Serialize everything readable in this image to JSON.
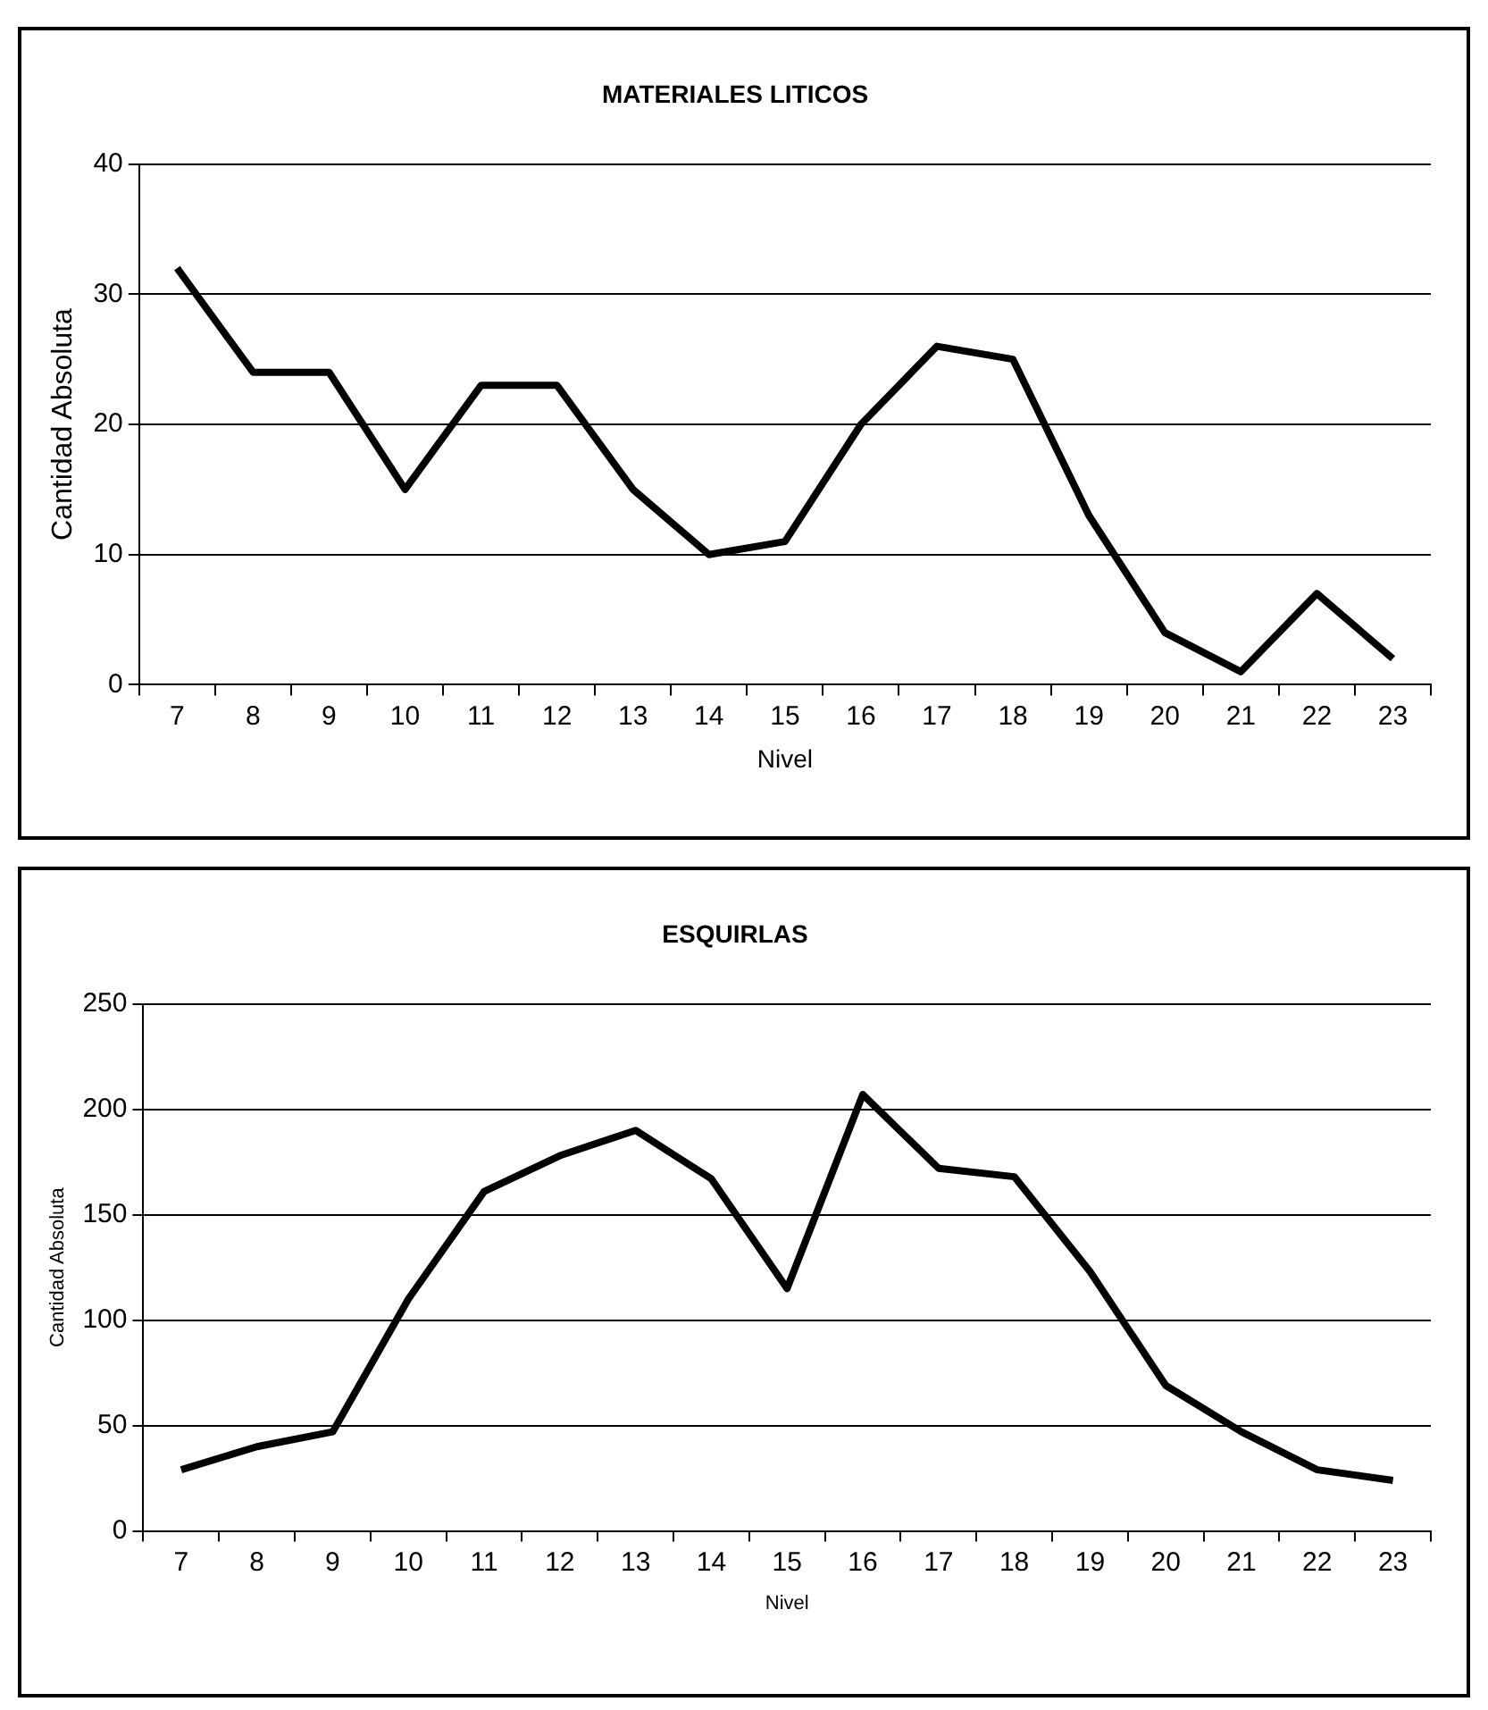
{
  "chart_data": [
    {
      "type": "line",
      "title": "MATERIALES LITICOS",
      "xlabel": "Nivel",
      "ylabel": "Cantidad Absoluta",
      "categories": [
        "7",
        "8",
        "9",
        "10",
        "11",
        "12",
        "13",
        "14",
        "15",
        "16",
        "17",
        "18",
        "19",
        "20",
        "21",
        "22",
        "23"
      ],
      "series": [
        {
          "color": "#000000",
          "values": [
            32,
            24,
            24,
            15,
            23,
            23,
            15,
            10,
            11,
            20,
            26,
            25,
            13,
            4,
            1,
            7,
            2
          ]
        }
      ],
      "ylim": [
        0,
        40
      ],
      "yticks": [
        0,
        10,
        20,
        30,
        40
      ],
      "grid": "y",
      "legend": false,
      "marker": "none",
      "line_style": "solid"
    },
    {
      "type": "line",
      "title": "ESQUIRLAS",
      "xlabel": "Nivel",
      "ylabel": "Cantidad Absoluta",
      "categories": [
        "7",
        "8",
        "9",
        "10",
        "11",
        "12",
        "13",
        "14",
        "15",
        "16",
        "17",
        "18",
        "19",
        "20",
        "21",
        "22",
        "23"
      ],
      "series": [
        {
          "color": "#000000",
          "values": [
            29,
            40,
            47,
            110,
            161,
            178,
            190,
            167,
            115,
            207,
            172,
            168,
            123,
            69,
            47,
            29,
            24
          ]
        }
      ],
      "ylim": [
        0,
        250
      ],
      "yticks": [
        0,
        50,
        100,
        150,
        200,
        250
      ],
      "grid": "y",
      "legend": false,
      "marker": "none",
      "line_style": "solid"
    }
  ]
}
